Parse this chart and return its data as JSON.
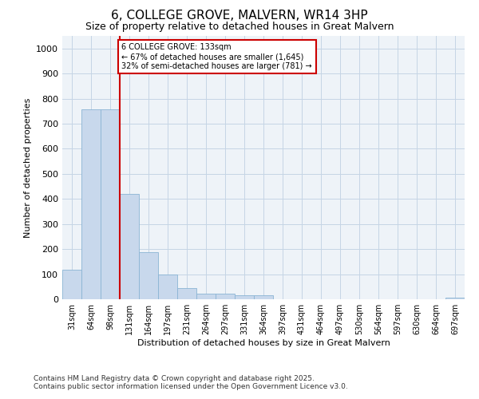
{
  "title": "6, COLLEGE GROVE, MALVERN, WR14 3HP",
  "subtitle": "Size of property relative to detached houses in Great Malvern",
  "xlabel": "Distribution of detached houses by size in Great Malvern",
  "ylabel": "Number of detached properties",
  "bar_color": "#c8d8ec",
  "bar_edgecolor": "#8ab4d4",
  "background_color": "#ffffff",
  "plot_bg_color": "#eef3f8",
  "grid_color": "#c5d5e5",
  "categories": [
    "31sqm",
    "64sqm",
    "98sqm",
    "131sqm",
    "164sqm",
    "197sqm",
    "231sqm",
    "264sqm",
    "297sqm",
    "331sqm",
    "364sqm",
    "397sqm",
    "431sqm",
    "464sqm",
    "497sqm",
    "530sqm",
    "564sqm",
    "597sqm",
    "630sqm",
    "664sqm",
    "697sqm"
  ],
  "values": [
    117,
    757,
    757,
    420,
    187,
    98,
    45,
    23,
    23,
    17,
    15,
    0,
    0,
    0,
    0,
    0,
    0,
    0,
    0,
    0,
    7
  ],
  "vline_index": 3,
  "vline_color": "#cc0000",
  "ylim": [
    0,
    1050
  ],
  "yticks": [
    0,
    100,
    200,
    300,
    400,
    500,
    600,
    700,
    800,
    900,
    1000
  ],
  "annotation_title": "6 COLLEGE GROVE: 133sqm",
  "annotation_line1": "← 67% of detached houses are smaller (1,645)",
  "annotation_line2": "32% of semi-detached houses are larger (781) →",
  "annotation_box_color": "#cc0000",
  "footnote1": "Contains HM Land Registry data © Crown copyright and database right 2025.",
  "footnote2": "Contains public sector information licensed under the Open Government Licence v3.0."
}
